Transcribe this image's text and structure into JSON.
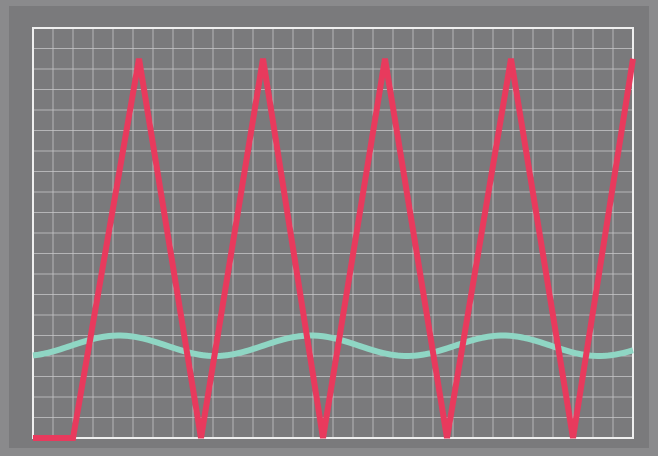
{
  "chart_data": {
    "type": "line",
    "title": "",
    "xlabel": "",
    "ylabel": "",
    "grid": true,
    "xlim": [
      0,
      30
    ],
    "ylim": [
      0,
      20
    ],
    "series": [
      {
        "color": "#e83a5d",
        "x": [
          0,
          2,
          5.3,
          8.4,
          11.5,
          14.5,
          17.6,
          20.7,
          23.9,
          27,
          30
        ],
        "values": [
          0,
          0,
          18.5,
          0,
          18.5,
          0,
          18.5,
          0,
          18.5,
          0,
          18.5
        ]
      },
      {
        "color": "#8fd6c4",
        "function": "sine",
        "offset": 4.5,
        "amplitude": 0.5,
        "period": 9.6,
        "phase_x": 4.3
      }
    ],
    "colors": {
      "background": "#7a7a7c",
      "frame": "#8a8a8c",
      "border": "#efefef",
      "grid": "#c9c9cb"
    }
  }
}
